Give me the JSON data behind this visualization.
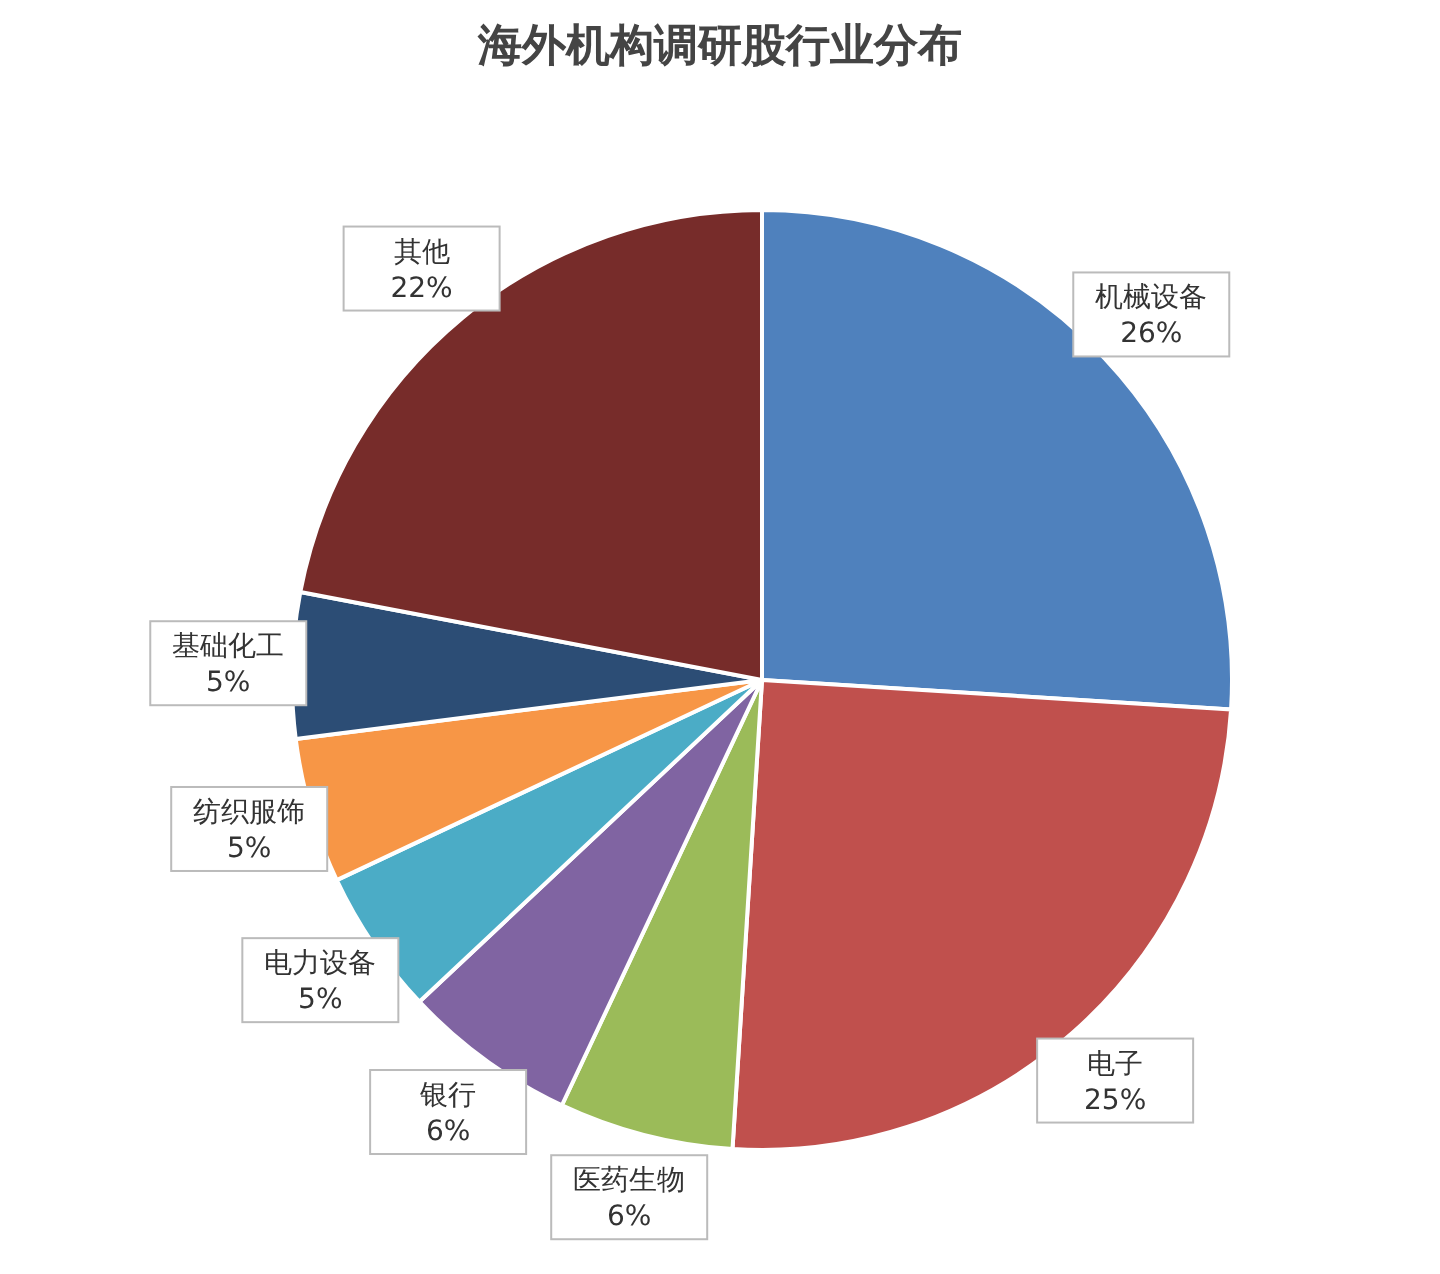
{
  "chart_data": {
    "type": "pie",
    "title": "海外机构调研股行业分布",
    "categories": [
      "机械设备",
      "电子",
      "医药生物",
      "银行",
      "电力设备",
      "纺织服饰",
      "基础化工",
      "其他"
    ],
    "values": [
      26,
      25,
      6,
      6,
      5,
      5,
      5,
      22
    ],
    "value_labels": [
      "26%",
      "25%",
      "6%",
      "6%",
      "5%",
      "5%",
      "5%",
      "22%"
    ],
    "colors": [
      "#4f81bd",
      "#c0504d",
      "#9bbb59",
      "#8064a2",
      "#4bacc6",
      "#f79646",
      "#2c4d75",
      "#772c2a"
    ]
  }
}
